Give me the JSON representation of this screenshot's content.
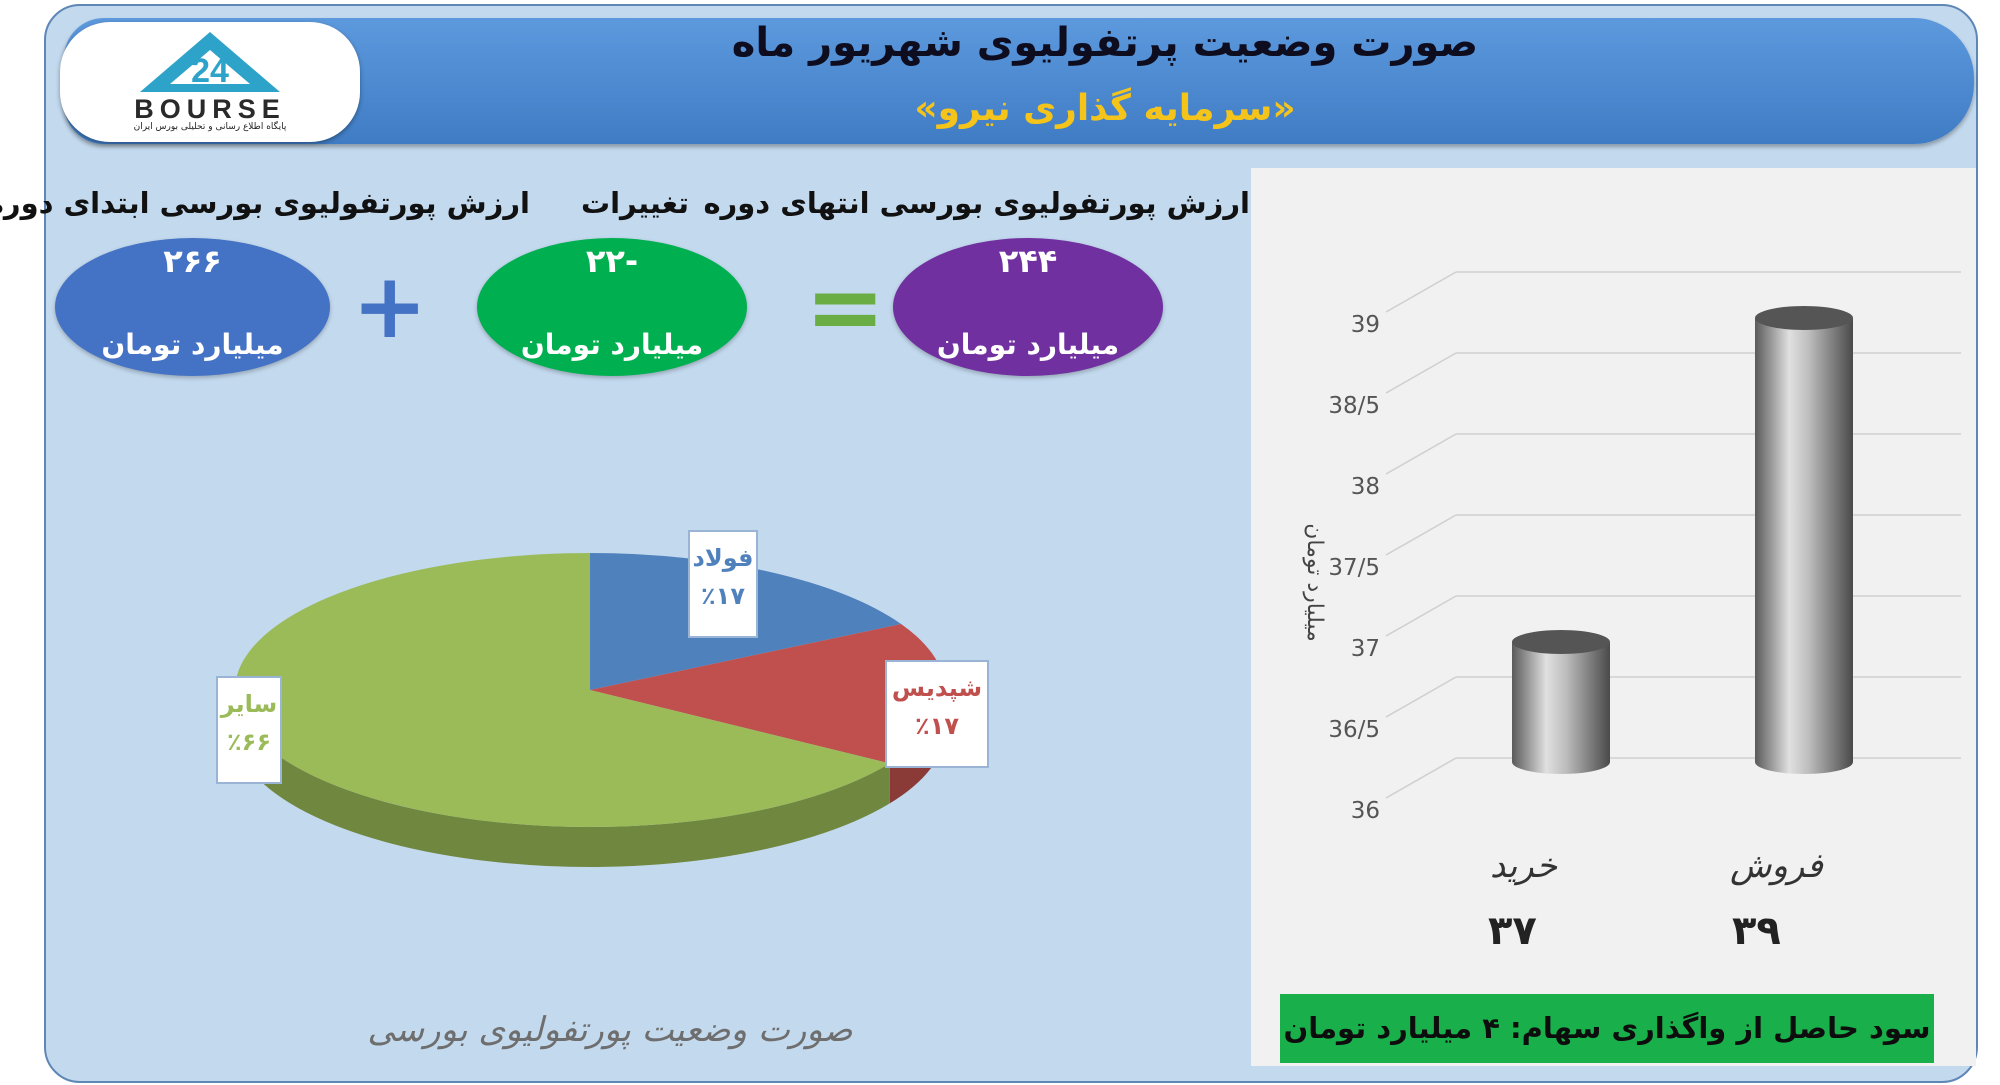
{
  "header": {
    "title": "صورت وضعیت پرتفولیوی شهریور ماه",
    "subtitle": "«سرمایه گذاری نیرو»"
  },
  "logo": {
    "text": "BOURSE",
    "subtitle": "پایگاه اطلاع رسانی و تحلیلی بورس ایران"
  },
  "summary": {
    "start": {
      "label": "ارزش پورتفولیوی بورسی ابتدای دوره",
      "value": "۲۶۶",
      "unit": "میلیارد تومان"
    },
    "change": {
      "label": "تغییرات",
      "value": "-۲۲",
      "unit": "میلیارد تومان"
    },
    "end": {
      "label": "ارزش پورتفولیوی بورسی انتهای دوره",
      "value": "۲۴۴",
      "unit": "میلیارد تومان"
    },
    "plus": "+",
    "equals": "="
  },
  "colors": {
    "start_oval": "#4472c4",
    "change_oval": "#00b050",
    "end_oval": "#7030a0",
    "plus": "#4472c4",
    "equals": "#6aad45"
  },
  "chart_data": [
    {
      "type": "pie",
      "title": "صورت وضعیت پورتفولیوی بورسی",
      "slices": [
        {
          "label": "فولاد",
          "value": 17,
          "display": "٪۱۷",
          "color": "#4f81bd"
        },
        {
          "label": "شپدیس",
          "value": 17,
          "display": "٪۱۷",
          "color": "#c0504d"
        },
        {
          "label": "سایر",
          "value": 66,
          "display": "٪۶۶",
          "color": "#9bbb59"
        }
      ]
    },
    {
      "type": "bar",
      "ylabel": "میلیارد تومان",
      "ylim": [
        36,
        39
      ],
      "yticks": [
        "36",
        "36/5",
        "37",
        "37/5",
        "38",
        "38/5",
        "39"
      ],
      "categories": [
        "خرید",
        "فروش"
      ],
      "values": [
        37,
        39
      ],
      "value_labels": [
        "۳۷",
        "۳۹"
      ],
      "grid": true
    }
  ],
  "profit_note": "سود حاصل از واگذاری سهام: ۴ میلیارد تومان"
}
